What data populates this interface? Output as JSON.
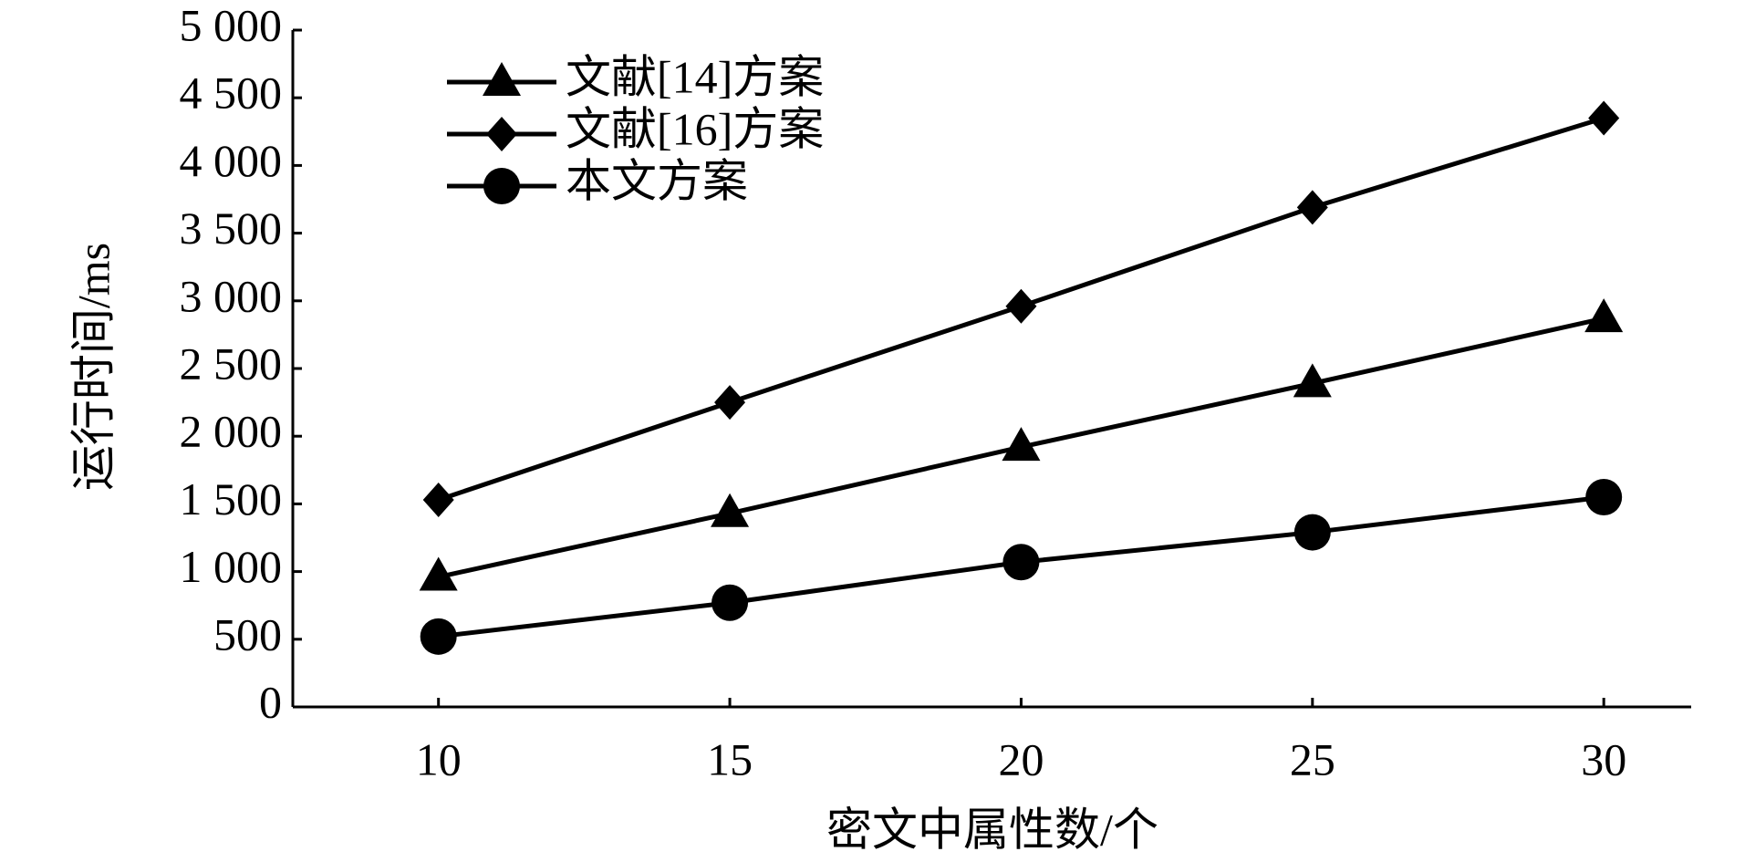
{
  "chart_data": {
    "type": "line",
    "x_label": "密文中属性数/个",
    "y_label": "运行时间/ms",
    "x": [
      10,
      15,
      20,
      25,
      30
    ],
    "series": [
      {
        "name": "文献[14]方案",
        "color": "#000000",
        "marker": "triangle",
        "values": [
          960,
          1430,
          1920,
          2390,
          2870
        ]
      },
      {
        "name": "文献[16]方案",
        "color": "#000000",
        "marker": "diamond",
        "values": [
          1530,
          2250,
          2960,
          3690,
          4350
        ]
      },
      {
        "name": "本文方案",
        "color": "#000000",
        "marker": "circle",
        "values": [
          520,
          770,
          1070,
          1290,
          1550
        ]
      }
    ],
    "xlim": [
      7.5,
      31.5
    ],
    "xticks": [
      10,
      15,
      20,
      25,
      30
    ],
    "ylim": [
      0,
      5000
    ],
    "yticks": [
      0,
      500,
      {
        "value": 1000,
        "label": "1 000"
      },
      {
        "value": 1500,
        "label": "1 500"
      },
      {
        "value": 2000,
        "label": "2 000"
      },
      {
        "value": 2500,
        "label": "2 500"
      },
      {
        "value": 3000,
        "label": "3 000"
      },
      {
        "value": 3500,
        "label": "3 500"
      },
      {
        "value": 4000,
        "label": "4 000"
      },
      {
        "value": 4500,
        "label": "4 500"
      },
      {
        "value": 5000,
        "label": "5 000"
      }
    ],
    "grid": false,
    "legend": "upper left"
  }
}
